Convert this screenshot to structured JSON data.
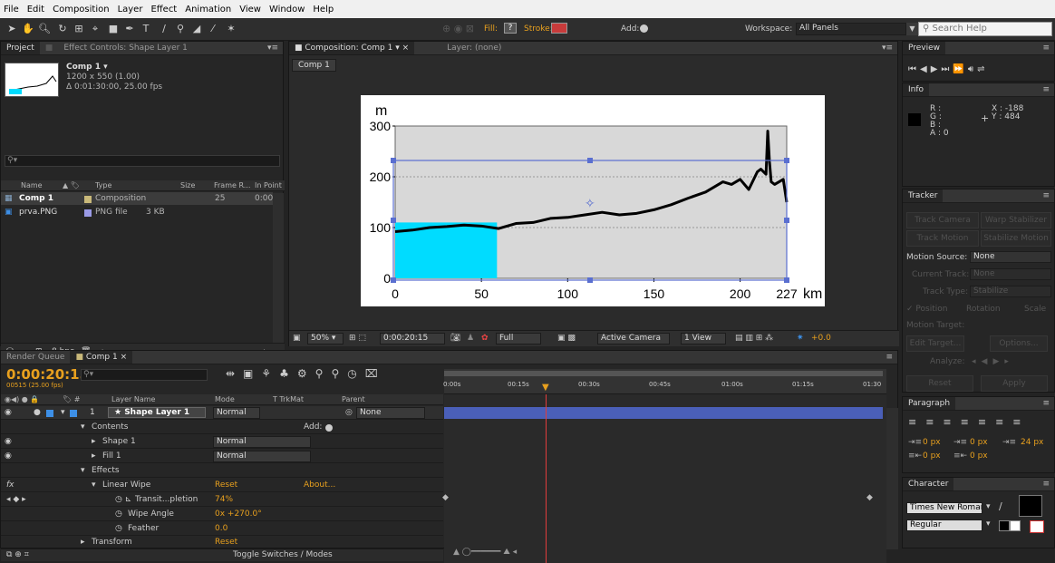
{
  "menubar": [
    "File",
    "Edit",
    "Composition",
    "Layer",
    "Effect",
    "Animation",
    "View",
    "Window",
    "Help"
  ],
  "toolbar": {
    "fill": "Fill:",
    "fill_icon": "?",
    "stroke": "Stroke:",
    "add": "Add:",
    "workspace_label": "Workspace:",
    "workspace": "All Panels",
    "search_placeholder": "Search Help"
  },
  "project": {
    "tab": "Project",
    "tab2": "Effect Controls: Shape Layer 1",
    "comp_name": "Comp 1 ▾",
    "comp_size": "1200 x 550 (1.00)",
    "comp_duration": "Δ 0:01:30:00, 25.00 fps",
    "columns": [
      "Name",
      "Type",
      "Size",
      "Frame R...",
      "In Point"
    ],
    "items": [
      {
        "name": "Comp 1",
        "type": "Composition",
        "size": "",
        "fps": "25",
        "in": "0:00"
      },
      {
        "name": "prva.PNG",
        "type": "PNG file",
        "size": "3 KB",
        "fps": "",
        "in": ""
      }
    ],
    "bpc": "8 bpc"
  },
  "comp": {
    "tab": "Composition: Comp 1",
    "layer_tab": "Layer: (none)",
    "crumb": "Comp 1",
    "zoom": "50%",
    "timecode": "0:00:20:15",
    "res": "Full",
    "camera": "Active Camera",
    "view": "1 View",
    "exposure": "+0.0"
  },
  "chart_data": {
    "type": "line",
    "ylabel": "m",
    "xlabel": "km",
    "x_ticks": [
      "0",
      "50",
      "100",
      "150",
      "200",
      "227"
    ],
    "y_ticks": [
      "0",
      "100",
      "200",
      "300"
    ],
    "xlim": [
      0,
      227
    ],
    "ylim": [
      0,
      300
    ],
    "series": [
      {
        "x": [
          0,
          10,
          20,
          30,
          40,
          50,
          60,
          70,
          80,
          90,
          100,
          110,
          120,
          130,
          140,
          150,
          160,
          170,
          180,
          185,
          190,
          195,
          200,
          205,
          210,
          212,
          215,
          216,
          217,
          218,
          220,
          225,
          227
        ],
        "values": [
          92,
          95,
          100,
          102,
          105,
          103,
          98,
          108,
          110,
          118,
          120,
          125,
          130,
          125,
          128,
          135,
          145,
          158,
          170,
          180,
          190,
          185,
          195,
          175,
          210,
          215,
          205,
          290,
          230,
          190,
          185,
          195,
          150
        ]
      }
    ],
    "wipe_fraction": 0.26,
    "wipe_color": "#00dcff",
    "plot_bg": "#d8d8d8",
    "line_color": "#000000"
  },
  "preview": {
    "tab": "Preview"
  },
  "info": {
    "tab": "Info",
    "r": "R :",
    "g": "G :",
    "b": "B :",
    "a": "A : 0",
    "x": "X : -188",
    "y": "Y : 484"
  },
  "tracker": {
    "tab": "Tracker",
    "track_camera": "Track Camera",
    "warp": "Warp Stabilizer",
    "track_motion": "Track Motion",
    "stabilize": "Stabilize Motion",
    "motion_source": "Motion Source:",
    "motion_source_val": "None",
    "current_track": "Current Track:",
    "current_track_val": "None",
    "track_type": "Track Type:",
    "track_type_val": "Stabilize",
    "position": "✓ Position",
    "rotation": "Rotation",
    "scale": "Scale",
    "motion_target": "Motion Target:",
    "edit_target": "Edit Target...",
    "options": "Options...",
    "analyze": "Analyze:",
    "reset": "Reset",
    "apply": "Apply"
  },
  "timeline": {
    "tab1": "Render Queue",
    "tab2": "Comp 1",
    "timecode": "0:00:20:15",
    "frames": "00515 (25.00 fps)",
    "col_layer": "Layer Name",
    "col_mode": "Mode",
    "col_trk": "T  TrkMat",
    "col_parent": "Parent",
    "ruler": [
      "0:00s",
      "00:15s",
      "00:30s",
      "00:45s",
      "01:00s",
      "01:15s",
      "01:30"
    ],
    "rows": [
      {
        "num": "1",
        "name": "★ Shape Layer 1",
        "mode": "Normal",
        "parent": "None"
      },
      {
        "name": "Contents",
        "add": "Add:"
      },
      {
        "name": "Shape 1",
        "mode": "Normal"
      },
      {
        "name": "Fill 1",
        "mode": "Normal"
      },
      {
        "name": "Effects"
      },
      {
        "name": "Linear Wipe",
        "reset": "Reset",
        "about": "About..."
      },
      {
        "name": "Transit...pletion",
        "value": "74%"
      },
      {
        "name": "Wipe Angle",
        "value": "0x +270.0°"
      },
      {
        "name": "Feather",
        "value": "0.0"
      },
      {
        "name": "Transform",
        "reset": "Reset"
      }
    ],
    "toggle": "Toggle Switches / Modes"
  },
  "paragraph": {
    "tab": "Paragraph",
    "v1": "0 px",
    "v2": "0 px",
    "v3": "24 px",
    "v4": "0 px",
    "v5": "0 px"
  },
  "character": {
    "tab": "Character",
    "font": "Times New Roman",
    "style": "Regular"
  }
}
